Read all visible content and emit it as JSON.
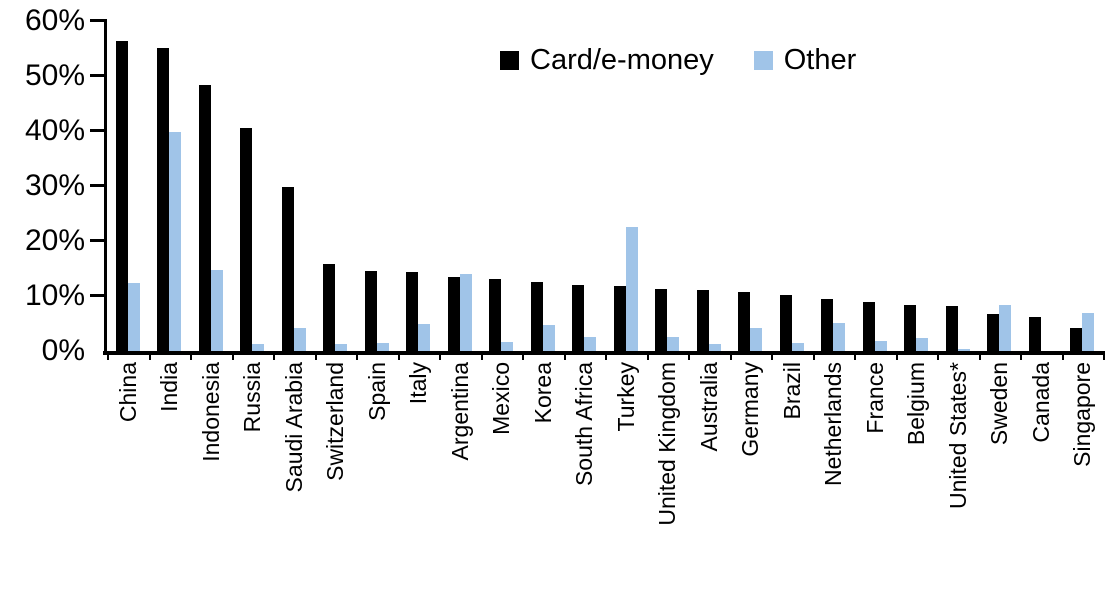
{
  "chart_data": {
    "type": "bar",
    "categories": [
      "China",
      "India",
      "Indonesia",
      "Russia",
      "Saudi Arabia",
      "Switzerland",
      "Spain",
      "Italy",
      "Argentina",
      "Mexico",
      "Korea",
      "South Africa",
      "Turkey",
      "United Kingdom",
      "Australia",
      "Germany",
      "Brazil",
      "Netherlands",
      "France",
      "Belgium",
      "United States*",
      "Sweden",
      "Canada",
      "Singapore"
    ],
    "series": [
      {
        "name": "Card/e-money",
        "color": "#000000",
        "values": [
          56.4,
          55.0,
          48.4,
          40.5,
          29.9,
          15.8,
          14.5,
          14.3,
          13.5,
          13.1,
          12.5,
          12.0,
          11.8,
          11.3,
          11.0,
          10.8,
          10.2,
          9.5,
          8.9,
          8.4,
          8.1,
          6.8,
          6.2,
          4.2
        ]
      },
      {
        "name": "Other",
        "color": "#A0C4E8",
        "values": [
          12.4,
          39.8,
          14.7,
          1.2,
          4.2,
          1.2,
          1.4,
          4.9,
          14.0,
          1.6,
          4.8,
          2.6,
          22.6,
          2.6,
          1.3,
          4.2,
          1.5,
          5.1,
          1.8,
          2.3,
          0.3,
          8.4,
          0,
          6.9
        ]
      }
    ],
    "xlabel": "",
    "ylabel": "",
    "ylim": [
      0,
      60
    ],
    "ytick_step": 10,
    "ytick_labels": [
      "0%",
      "10%",
      "20%",
      "30%",
      "40%",
      "50%",
      "60%"
    ],
    "x_tick_rotation": 90,
    "grid": false,
    "legend_position": "top-center"
  }
}
